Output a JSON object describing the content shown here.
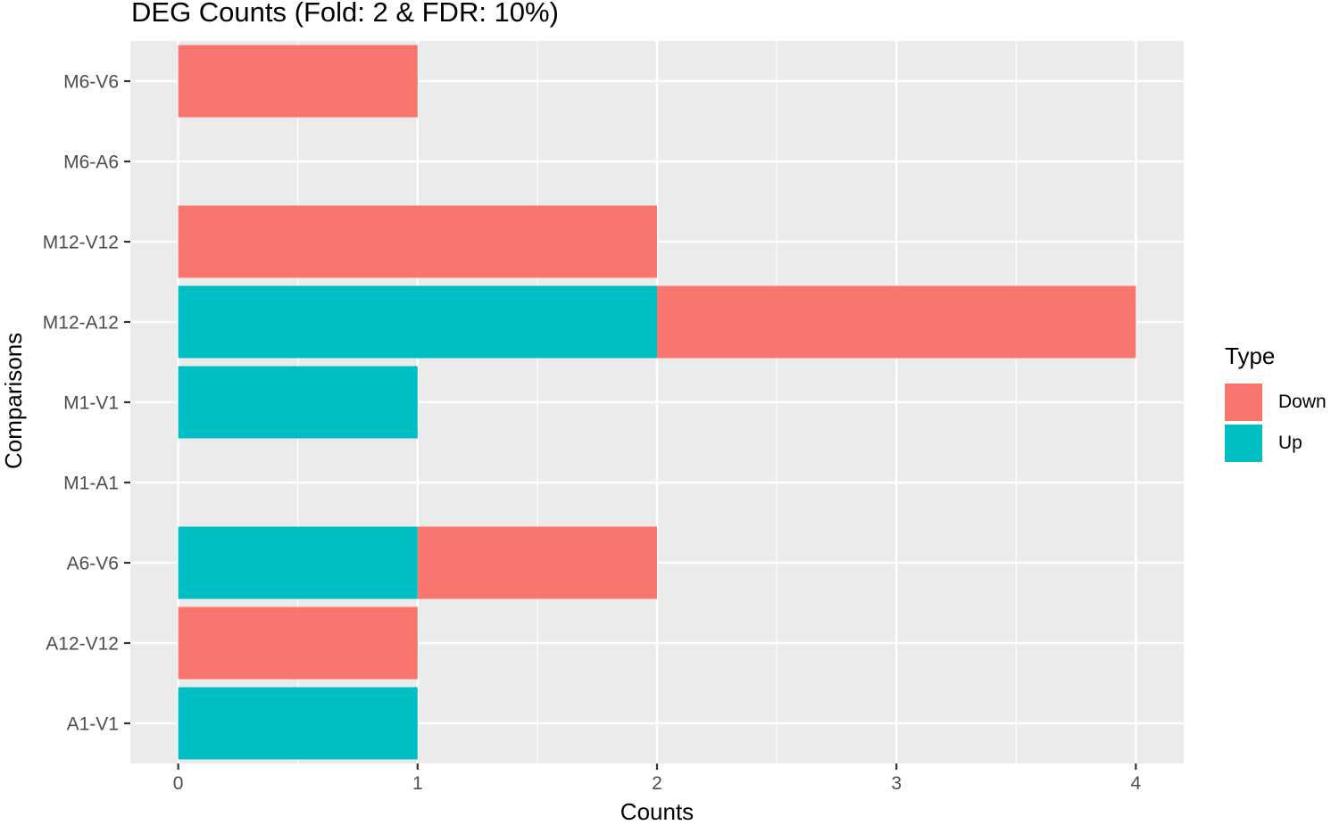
{
  "chart_data": {
    "type": "bar",
    "orientation": "horizontal",
    "stacked": true,
    "title": "DEG Counts (Fold: 2 & FDR: 10%)",
    "xlabel": "Counts",
    "ylabel": "Comparisons",
    "xlim": [
      -0.2,
      4.2
    ],
    "xticks": [
      0,
      1,
      2,
      3,
      4
    ],
    "grid": true,
    "legend_position": "right",
    "legend_title": "Type",
    "categories": [
      "M6-V6",
      "M6-A6",
      "M12-V12",
      "M12-A12",
      "M1-V1",
      "M1-A1",
      "A6-V6",
      "A12-V12",
      "A1-V1"
    ],
    "series": [
      {
        "name": "Up",
        "color": "#00BFC4",
        "values": [
          0,
          0,
          0,
          2,
          1,
          0,
          1,
          0,
          1
        ]
      },
      {
        "name": "Down",
        "color": "#F8766D",
        "values": [
          1,
          0,
          2,
          2,
          0,
          0,
          1,
          1,
          0
        ]
      }
    ],
    "legend_entries": [
      {
        "name": "Down",
        "color": "#F8766D"
      },
      {
        "name": "Up",
        "color": "#00BFC4"
      }
    ],
    "panel_color": "#EBEBEB",
    "grid_color": "#FFFFFF"
  }
}
